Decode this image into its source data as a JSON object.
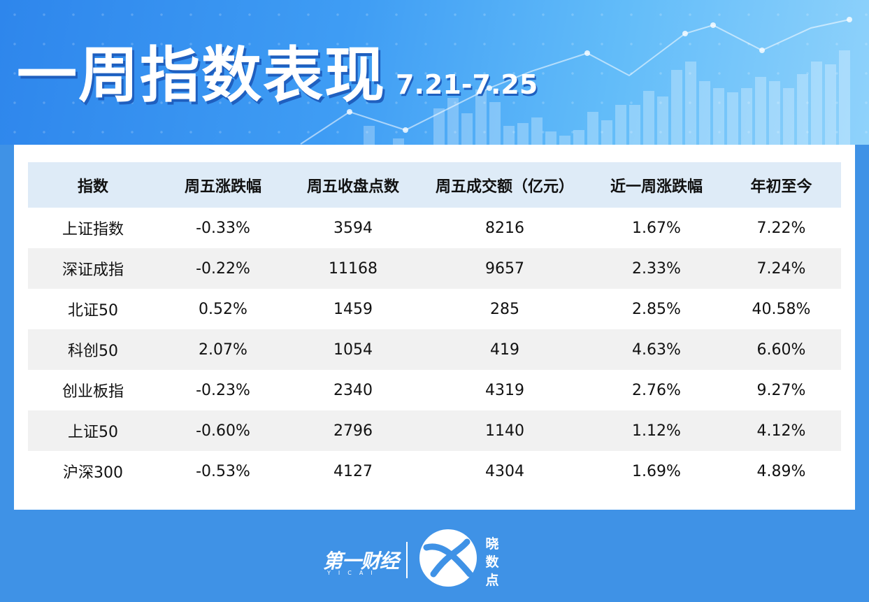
{
  "header": {
    "title": "一周指数表现",
    "date_range": "7.21-7.25"
  },
  "colors": {
    "background": "#3f92e6",
    "header_row": "#deebf7",
    "alt_row": "#f1f1f1",
    "gain": "#e11d1d",
    "loss": "#16a34a"
  },
  "table": {
    "columns": [
      "指数",
      "周五涨跌幅",
      "周五收盘点数",
      "周五成交额（亿元）",
      "近一周涨跌幅",
      "年初至今"
    ],
    "rows": [
      {
        "name": "上证指数",
        "day_change": "-0.33%",
        "close": "3594",
        "turnover": "8216",
        "week_change": "1.67%",
        "ytd": "7.22%"
      },
      {
        "name": "深证成指",
        "day_change": "-0.22%",
        "close": "11168",
        "turnover": "9657",
        "week_change": "2.33%",
        "ytd": "7.24%"
      },
      {
        "name": "北证50",
        "day_change": "0.52%",
        "close": "1459",
        "turnover": "285",
        "week_change": "2.85%",
        "ytd": "40.58%"
      },
      {
        "name": "科创50",
        "day_change": "2.07%",
        "close": "1054",
        "turnover": "419",
        "week_change": "4.63%",
        "ytd": "6.60%"
      },
      {
        "name": "创业板指",
        "day_change": "-0.23%",
        "close": "2340",
        "turnover": "4319",
        "week_change": "2.76%",
        "ytd": "9.27%"
      },
      {
        "name": "上证50",
        "day_change": "-0.60%",
        "close": "2796",
        "turnover": "1140",
        "week_change": "1.12%",
        "ytd": "4.12%"
      },
      {
        "name": "沪深300",
        "day_change": "-0.53%",
        "close": "4127",
        "turnover": "4304",
        "week_change": "1.69%",
        "ytd": "4.89%"
      }
    ]
  },
  "footer": {
    "brand": "第一财经",
    "brand_sub": "YICAI",
    "emblem_icon": "xiaoshudian-logo-icon",
    "emblem_text": [
      "晓",
      "数",
      "点"
    ]
  }
}
